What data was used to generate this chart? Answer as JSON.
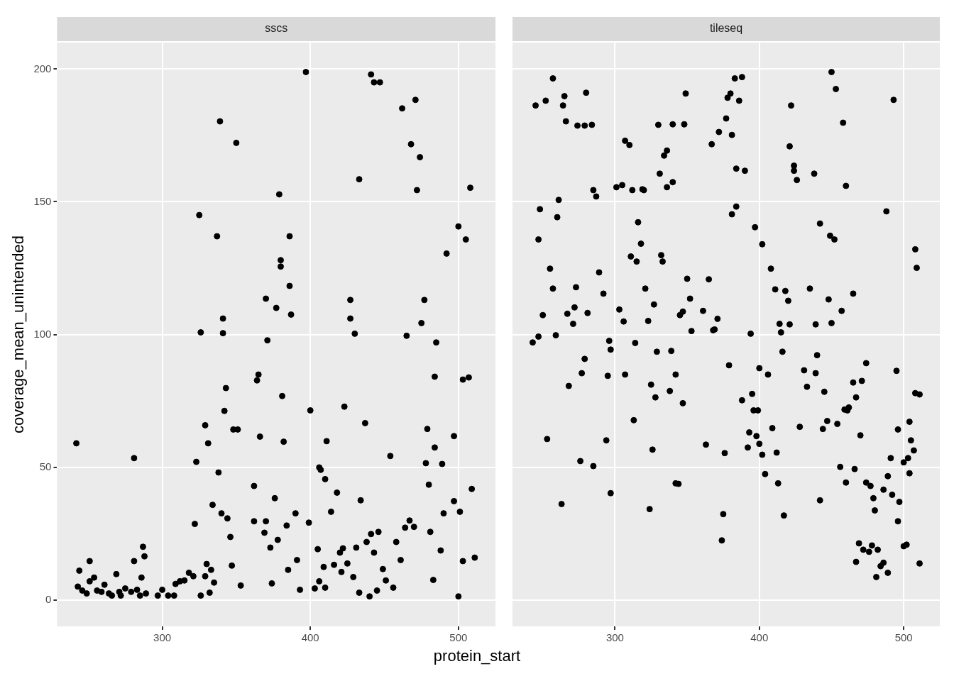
{
  "chart_data": [
    {
      "type": "scatter",
      "title": "sscs",
      "xlabel": "protein_start",
      "ylabel": "coverage_mean_unintended",
      "xlim": [
        229,
        525
      ],
      "xticks": [
        300,
        400,
        500
      ],
      "ylim": [
        -10,
        210
      ],
      "yticks": [
        0,
        50,
        100,
        150,
        200
      ],
      "grid": true,
      "marker": "circle",
      "color": "#000000",
      "x": [
        242,
        244,
        243,
        246,
        249,
        251,
        251,
        254,
        256,
        259,
        261,
        264,
        266,
        269,
        271,
        272,
        275,
        279,
        281,
        281,
        283,
        285,
        286,
        287,
        288,
        289,
        297,
        300,
        304,
        308,
        309,
        312,
        315,
        318,
        321,
        322,
        323,
        325,
        326,
        326,
        329,
        329,
        330,
        331,
        332,
        333,
        334,
        335,
        337,
        338,
        339,
        340,
        341,
        341,
        342,
        343,
        344,
        346,
        347,
        348,
        350,
        351,
        353,
        362,
        362,
        364,
        365,
        366,
        369,
        370,
        370,
        371,
        373,
        374,
        376,
        377,
        378,
        379,
        380,
        380,
        381,
        382,
        384,
        385,
        386,
        386,
        387,
        390,
        391,
        393,
        397,
        399,
        400,
        403,
        405,
        406,
        406,
        407,
        409,
        410,
        411,
        410,
        414,
        416,
        418,
        420,
        421,
        422,
        423,
        425,
        427,
        427,
        429,
        430,
        431,
        433,
        434,
        433,
        437,
        438,
        440,
        441,
        441,
        443,
        443,
        445,
        446,
        447,
        449,
        451,
        454,
        456,
        458,
        461,
        462,
        464,
        465,
        467,
        468,
        470,
        471,
        472,
        474,
        475,
        477,
        478,
        479,
        480,
        481,
        483,
        484,
        484,
        485,
        488,
        489,
        490,
        492,
        497,
        497,
        500,
        500,
        501,
        503,
        503,
        505,
        507,
        508,
        509,
        511
      ],
      "values": [
        59,
        11,
        5,
        3.5,
        2.4,
        7,
        14.6,
        8.4,
        3.5,
        3,
        5.7,
        2.4,
        1.6,
        9.7,
        3,
        1.6,
        4.3,
        3,
        14.6,
        53.4,
        3.8,
        1.6,
        8.4,
        20,
        16.4,
        2.4,
        1.6,
        3.8,
        1.6,
        1.6,
        6,
        7,
        7.3,
        10.2,
        8.9,
        28.6,
        52,
        145,
        100.8,
        1.6,
        8.9,
        65.8,
        13.5,
        59,
        2.7,
        11.3,
        35.8,
        6.5,
        137,
        48,
        180.3,
        32.6,
        106,
        100.5,
        71.2,
        79.8,
        30.7,
        23.7,
        12.9,
        64.2,
        172.2,
        64.2,
        5.4,
        42.9,
        29.6,
        82.7,
        84.9,
        61.5,
        25.3,
        29.6,
        113.5,
        97.8,
        19.7,
        6.2,
        38.3,
        110,
        22.6,
        152.8,
        128,
        125.6,
        76.8,
        59.6,
        28,
        11.3,
        137,
        118.3,
        107.5,
        32.6,
        15,
        3.8,
        198.9,
        29.1,
        71.4,
        4.3,
        19.1,
        7,
        49.9,
        49,
        12.4,
        45.5,
        59.8,
        4.6,
        33.2,
        13.2,
        40.4,
        17.8,
        10.5,
        19.4,
        72.8,
        13.7,
        113,
        106,
        8.6,
        100.3,
        19.7,
        158.5,
        37.5,
        2.7,
        66.6,
        21.8,
        1.3,
        24.8,
        198,
        17.8,
        195,
        3.5,
        25.6,
        195,
        11.6,
        7.3,
        54.2,
        4.6,
        21.8,
        15,
        185.2,
        27.2,
        99.5,
        29.9,
        171.7,
        27.5,
        188.4,
        154.4,
        166.8,
        104.3,
        113,
        51.5,
        64.4,
        43.4,
        25.6,
        7.5,
        57.4,
        84.1,
        97,
        18.6,
        51.2,
        32.6,
        130.5,
        37.2,
        61.7,
        140.7,
        1.3,
        33.2,
        83,
        14.6,
        135.8,
        83.8,
        155.3,
        41.8,
        15.9
      ]
    },
    {
      "type": "scatter",
      "title": "tileseq",
      "xlim": [
        229,
        525
      ],
      "xticks": [
        300,
        400,
        500
      ],
      "ylim": [
        -10,
        210
      ],
      "yticks": [
        0,
        50,
        100,
        150,
        200
      ],
      "grid": true,
      "marker": "circle",
      "color": "#000000",
      "tick_labels": "x",
      "x": [
        243,
        245,
        247,
        247,
        248,
        250,
        252,
        253,
        255,
        257,
        257,
        259,
        260,
        261,
        263,
        264,
        265,
        266,
        267,
        268,
        271,
        272,
        273,
        274,
        276,
        277,
        279,
        279,
        280,
        281,
        284,
        285,
        285,
        287,
        289,
        292,
        294,
        295,
        296,
        297,
        297,
        301,
        303,
        305,
        306,
        307,
        307,
        310,
        311,
        312,
        313,
        314,
        315,
        316,
        318,
        319,
        320,
        321,
        323,
        324,
        325,
        326,
        327,
        328,
        329,
        330,
        331,
        332,
        333,
        334,
        336,
        336,
        339,
        338,
        340,
        340,
        342,
        342,
        344,
        345,
        347,
        347,
        348,
        349,
        350,
        352,
        353,
        361,
        363,
        365,
        367,
        368,
        369,
        371,
        372,
        374,
        375,
        376,
        377,
        379,
        378,
        380,
        381,
        381,
        383,
        384,
        384,
        386,
        388,
        388,
        390,
        392,
        393,
        394,
        395,
        396,
        397,
        398,
        399,
        400,
        400,
        402,
        402,
        404,
        406,
        408,
        409,
        411,
        412,
        413,
        414,
        415,
        416,
        417,
        418,
        420,
        421,
        421,
        422,
        424,
        424,
        426,
        428,
        431,
        433,
        435,
        438,
        439,
        439,
        440,
        442,
        442,
        444,
        445,
        447,
        448,
        450,
        449,
        450,
        452,
        453,
        454,
        456,
        457,
        458,
        459,
        460,
        460,
        461,
        462,
        465,
        465,
        466,
        467,
        467,
        469,
        470,
        471,
        472,
        474,
        474,
        476,
        477,
        478,
        479,
        480,
        481,
        482,
        484,
        486,
        486,
        488,
        489,
        489,
        491,
        492,
        493,
        495,
        496,
        496,
        497,
        500,
        500,
        502,
        503,
        504,
        504,
        505,
        507,
        508,
        508,
        509,
        511,
        511
      ],
      "values": [
        97,
        186.3,
        99.2,
        135.8,
        147.2,
        107.3,
        188.1,
        60.6,
        124.8,
        196.5,
        117.3,
        99.7,
        144.2,
        150.7,
        36.1,
        186.3,
        189.8,
        180.3,
        107.8,
        80.6,
        104,
        110.2,
        117.8,
        178.7,
        52.3,
        85.4,
        178.7,
        90.8,
        191.1,
        108.1,
        179,
        50.4,
        154.4,
        152,
        123.4,
        115.4,
        60.1,
        84.4,
        97.6,
        40.2,
        94.3,
        155.5,
        109.4,
        156.3,
        104.9,
        84.9,
        173,
        171.4,
        129.4,
        154.4,
        67.7,
        96.8,
        127.5,
        142.3,
        134.2,
        154.7,
        154.4,
        117.3,
        105.1,
        34.2,
        81.1,
        56.6,
        111.3,
        76.3,
        93.5,
        179,
        160.6,
        129.9,
        127.5,
        167.4,
        169.3,
        155.5,
        93.8,
        78.7,
        179.2,
        157.4,
        84.9,
        43.9,
        43.7,
        107.3,
        74.1,
        108.6,
        179.2,
        190.8,
        121,
        113.5,
        101.3,
        108.9,
        58.5,
        120.8,
        171.7,
        101.6,
        101.9,
        105.9,
        176.3,
        22.4,
        32.3,
        55.3,
        181.4,
        88.4,
        189.2,
        190.8,
        175.2,
        145.3,
        196.5,
        148.2,
        162.5,
        188.1,
        75.2,
        197,
        161.7,
        57.4,
        63.1,
        100.3,
        77.6,
        71.4,
        140.4,
        61.7,
        71.4,
        87.3,
        58.8,
        134,
        54.7,
        47.4,
        84.9,
        124.8,
        64.7,
        117,
        55.5,
        43.9,
        104,
        100.8,
        93.5,
        31.8,
        116.4,
        112.7,
        103.8,
        170.9,
        186.3,
        161.7,
        163.6,
        158.2,
        65.2,
        86.5,
        80.3,
        117.3,
        160.6,
        103.8,
        85.4,
        92.2,
        141.8,
        37.5,
        64.4,
        78.4,
        67.4,
        113.2,
        104.3,
        137.2,
        198.9,
        135.8,
        192.5,
        66.3,
        50.1,
        108.9,
        179.8,
        71.7,
        44.2,
        156,
        71.4,
        72.5,
        81.9,
        115.4,
        49.3,
        76.3,
        14.3,
        21.3,
        62,
        82.5,
        18.9,
        89.2,
        44.2,
        18.1,
        42.9,
        20.5,
        38.3,
        33.7,
        8.6,
        18.9,
        12.7,
        14,
        41.5,
        146.4,
        10.2,
        46.6,
        53.4,
        39.6,
        188.4,
        86.3,
        64.2,
        29.6,
        36.9,
        20.2,
        51.8,
        20.8,
        53.4,
        47.7,
        67.1,
        60.1,
        56.3,
        77.9,
        132.1,
        125.1,
        77.4,
        13.7
      ]
    }
  ]
}
